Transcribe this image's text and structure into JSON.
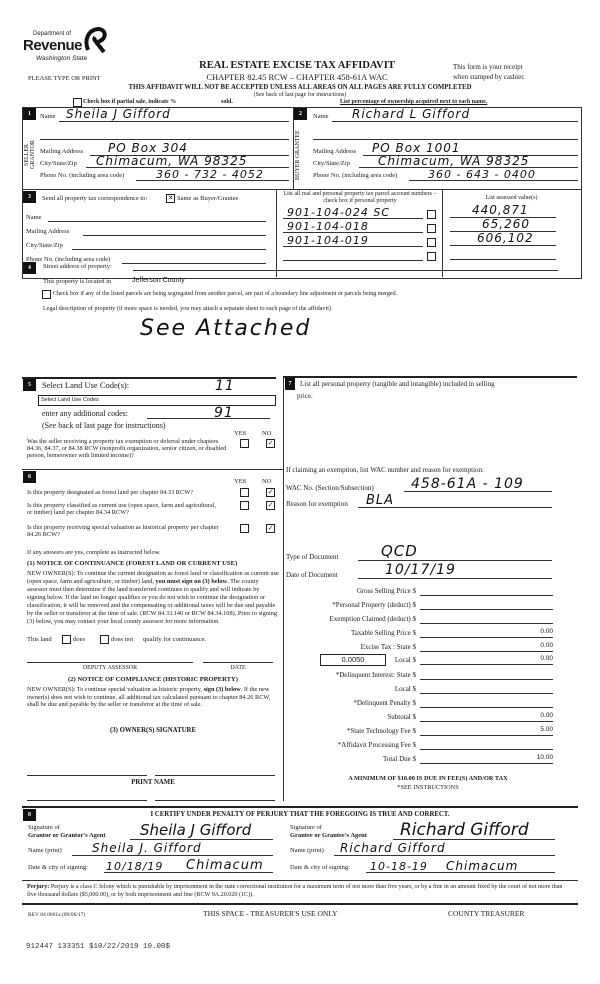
{
  "header": {
    "dept": "Department of",
    "revenue": "Revenue",
    "state": "Washington State",
    "title": "REAL ESTATE EXCISE TAX AFFIDAVIT",
    "chapter": "CHAPTER 82.45 RCW – CHAPTER 458-61A WAC",
    "please": "PLEASE TYPE OR PRINT",
    "receipt1": "This form is your receipt",
    "receipt2": "when stamped by cashier.",
    "warning": "THIS AFFIDAVIT WILL NOT BE ACCEPTED UNLESS ALL AREAS ON ALL PAGES ARE FULLY COMPLETED",
    "see_back": "(See back of last page for instructions)",
    "partial": "Check box if partial sale, indicate %",
    "sold": "sold.",
    "list_pct": "List percentage of ownership acquired next to each name."
  },
  "seller": {
    "num": "1",
    "side": "SELLER GRANTOR",
    "name_label": "Name",
    "name": "Sheila J Gifford",
    "mail_label": "Mailing Address",
    "mail": "PO Box 304",
    "city_label": "City/State/Zip",
    "city": "Chimacum, WA 98325",
    "phone_label": "Phone No. (including area code)",
    "phone": "360 - 732 - 4052"
  },
  "buyer": {
    "num": "2",
    "side": "BUYER GRANTEE",
    "name_label": "Name",
    "name": "Richard L Gifford",
    "mail_label": "Mailing Address",
    "mail": "PO Box 1001",
    "city_label": "City/State/Zip",
    "city": "Chimacum, WA 98325",
    "phone_label": "Phone No. (including area code)",
    "phone": "360 - 643 - 0400"
  },
  "sec3": {
    "num": "3",
    "send": "Send all property tax correspondence to:",
    "same": "Same as Buyer/Grantee",
    "same_checked": true,
    "name_label": "Name",
    "mail_label": "Mailing Address",
    "city_label": "City/State/Zip",
    "phone_label": "Phone No. (including area code)",
    "parcels_header": "List all real and personal property tax parcel account numbers – check box if personal property",
    "parcels": [
      "901-104-024 SC",
      "901-104-018",
      "901-104-019",
      ""
    ],
    "assessed_header": "List assessed value(s)",
    "assessed": [
      "440,871",
      "65,260",
      "606,102",
      ""
    ]
  },
  "sec4": {
    "num": "4",
    "street_label": "Street address of property:",
    "located": "This property is located in",
    "county": "Jefferson County",
    "seg": "Check box if any of the listed parcels are being segregated from another parcel, are part of a boundary line adjustment or parcels being merged.",
    "legal": "Legal description of property (if more space is needed, you may attach a separate sheet to each page of the affidavit)",
    "legal_value": "See Attached"
  },
  "sec5": {
    "num": "5",
    "select_label": "Select Land Use Code(s):",
    "select_value": "Select Land Use Codes",
    "code_written": "11",
    "additional": "enter any additional codes:",
    "additional_value": "91",
    "see_back": "(See back of last page for instructions)",
    "yes": "YES",
    "no": "NO",
    "q": "Was the seller receiving a property tax exemption or deferral under chapters 84.36, 84.37, or 84.38 RCW (nonprofit organization, senior citizen, or disabled person, homeowner with limited income)?",
    "q_answer": "NO"
  },
  "sec6": {
    "num": "6",
    "yes": "YES",
    "no": "NO",
    "questions": [
      {
        "text": "Is this property designated as forest land per chapter 84.33 RCW?",
        "answer": "NO"
      },
      {
        "text": "Is this property classified as current use (open space, farm and agricultural, or timber) land per chapter 84.34 RCW?",
        "answer": "NO"
      },
      {
        "text": "Is this property receiving special valuation as historical property per chapter 84.26 RCW?",
        "answer": "NO"
      }
    ],
    "if_any": "If any answers are yes, complete as instructed below.",
    "notice1_title": "(1) NOTICE OF CONTINUANCE (FOREST LAND OR CURRENT USE)",
    "notice1_a": "NEW OWNER(S): To continue the current designation as forest land or classification as current use (open space, farm and agriculture, or timber) land, ",
    "notice1_b": "you must sign on (3) below",
    "notice1_c": ". The county assessor must then determine if the land transferred continues to qualify and will indicate by signing below. If the land no longer qualifies or you do not wish to continue the designation or classification, it will be removed and the compensating or additional taxes will be due and payable by the seller or transferor at the time of sale. (RCW 84.33.140 or RCW 84.34.108). Prior to signing (3) below, you may contact your local county assessor for more information.",
    "this_land": "This land",
    "does": "does",
    "does_not": "does not",
    "qualify": "qualify for continuance.",
    "deputy": "DEPUTY ASSESSOR",
    "date": "DATE",
    "notice2_title": "(2) NOTICE OF COMPLIANCE (HISTORIC PROPERTY)",
    "notice2_a": "NEW OWNER(S): To continue special valuation as historic property, ",
    "notice2_b": "sign (3) below",
    "notice2_c": ". If the new owner(s) does not wish to continue, all additional tax calculated pursuant to chapter 84.26 RCW, shall be due and payable by the seller or transferor at the time of sale.",
    "owner_sig": "(3) OWNER(S) SIGNATURE",
    "print_name": "PRINT NAME"
  },
  "sec7": {
    "num": "7",
    "list": "List all personal property (tangible and intangible) included in selling",
    "list2": "price.",
    "exemption_header": "If claiming an exemption, list WAC number and reason for exemption:",
    "wac_label": "WAC No. (Section/Subsection)",
    "wac_value": "458-61A - 109",
    "reason_label": "Reason for exemption",
    "reason_value": "BLA",
    "doc_type_label": "Type of Document",
    "doc_type": "QCD",
    "doc_date_label": "Date of Document",
    "doc_date": "10/17/19",
    "local_rate": "0.0050",
    "fees": [
      {
        "label": "Gross Selling Price $",
        "value": ""
      },
      {
        "label": "*Personal Property (deduct) $",
        "value": ""
      },
      {
        "label": "Exemption Claimed (deduct) $",
        "value": ""
      },
      {
        "label": "Taxable Selling Price $",
        "value": "0.00"
      },
      {
        "label": "Excise Tax : State $",
        "value": "0.00"
      },
      {
        "label": "Local $",
        "value": "0.00"
      },
      {
        "label": "*Delinquent Interest: State $",
        "value": ""
      },
      {
        "label": "Local $",
        "value": ""
      },
      {
        "label": "*Delinquent Penalty $",
        "value": ""
      },
      {
        "label": "Subtotal $",
        "value": "0.00"
      },
      {
        "label": "*State Technology Fee $",
        "value": "5.00"
      },
      {
        "label": "*Affidavit Processing Fee $",
        "value": ""
      },
      {
        "label": "Total Due $",
        "value": "10.00"
      }
    ],
    "min_due": "A MINIMUM OF $10.00 IS DUE IN FEE(S) AND/OR TAX",
    "see_instr": "*SEE INSTRUCTIONS"
  },
  "sec8": {
    "num": "8",
    "certify": "I CERTIFY UNDER PENALTY OF PERJURY THAT THE FOREGOING IS TRUE AND CORRECT.",
    "sig_of": "Signature of",
    "grantor_agent": "Grantor or Grantor's Agent",
    "grantee_agent": "Grantee or Grantee's Agent",
    "name_print": "Name (print)",
    "date_city": "Date & city of signing:",
    "grantor_sig": "Sheila J Gifford",
    "grantor_name": "Sheila J. Gifford",
    "grantor_date": "10/18/19",
    "grantor_city": "Chimacum",
    "grantee_sig": "Richard Gifford",
    "grantee_name": "Richard Gifford",
    "grantee_date": "10-18-19",
    "grantee_city": "Chimacum",
    "perjury_bold": "Perjury:",
    "perjury": " Perjury is a class C felony which is punishable by imprisonment in the state correctional institution for a maximum term of not more than five years, or by a fine in an amount fixed by the court of not more than five thousand dollars ($5,000.00), or by both imprisonment and fine (RCW 9A.20.020 (1C))."
  },
  "footer": {
    "rev": "REV 84 0001a (09/06/17)",
    "treasurer_space": "THIS SPACE - TREASURER'S USE ONLY",
    "county_treasurer": "COUNTY TREASURER",
    "stamp": "912447 133351 $10/22/2019 10.00$"
  },
  "colors": {
    "ink": "#1a1a1a",
    "paper": "#ffffff"
  }
}
